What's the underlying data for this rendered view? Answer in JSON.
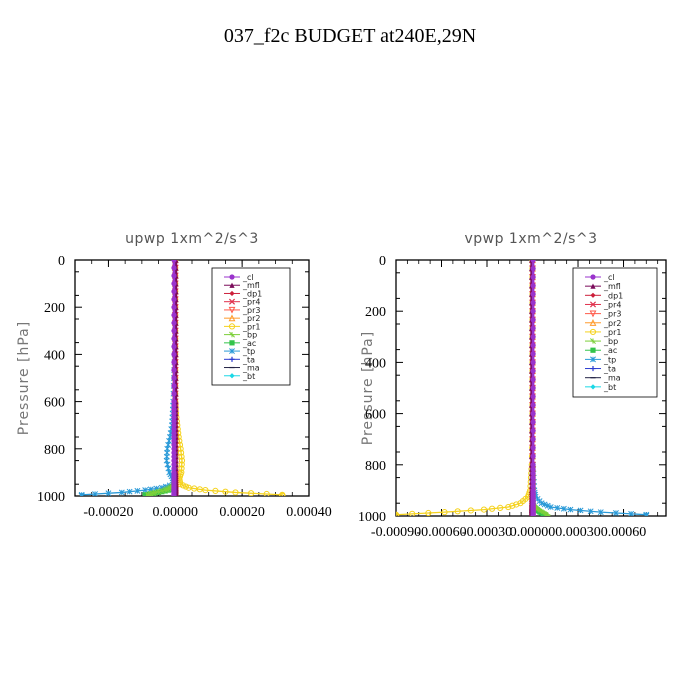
{
  "page": {
    "title": "037_f2c  BUDGET at240E,29N"
  },
  "legend_entries": [
    "_cl",
    "_mfl",
    "_dp1",
    "_pr4",
    "_pr3",
    "_pr2",
    "_pr1",
    "_bp",
    "_ac",
    "_tp",
    "_ta",
    "_ma",
    "_bt"
  ],
  "colors": {
    "_cl": "#9a33cc",
    "_mfl": "#7a0a5a",
    "_dp1": "#cc1f3a",
    "_pr4": "#e0304c",
    "_pr3": "#ff5a4a",
    "_pr2": "#ff9a2a",
    "_pr1": "#f5d21e",
    "_bp": "#7ccf3a",
    "_ac": "#33c44a",
    "_tp": "#2a9ad8",
    "_ta": "#2a3ad0",
    "_ma": "#222244",
    "_bt": "#1ad8e6"
  },
  "chart_data": [
    {
      "type": "line",
      "title": "upwp   1xm^2/s^3",
      "ylabel": "Pressure [hPa]",
      "xlabel": "",
      "xlim": [
        -0.0003,
        0.0004
      ],
      "ylim": [
        1000,
        0
      ],
      "xticks": [
        "-0.00020",
        "0.00000",
        "0.00020",
        "0.00040"
      ],
      "xtick_values": [
        -0.0002,
        0.0,
        0.0002,
        0.0004
      ],
      "yticks": [
        "0",
        "200",
        "400",
        "600",
        "800",
        "1000"
      ],
      "ytick_values": [
        0,
        200,
        400,
        600,
        800,
        1000
      ],
      "grid": false,
      "legend_position": "top-right",
      "pressure": [
        0,
        100,
        200,
        300,
        400,
        500,
        600,
        650,
        700,
        750,
        800,
        850,
        900,
        925,
        950,
        965,
        975,
        985,
        995,
        1000
      ],
      "series": [
        {
          "name": "_cl",
          "values": [
            -4e-06,
            -4e-06,
            -4e-06,
            -4e-06,
            -4e-06,
            -4e-06,
            -4e-06,
            -4e-06,
            -4e-06,
            -4e-06,
            -4e-06,
            -4e-06,
            -4e-06,
            -4e-06,
            -4e-06,
            -4e-06,
            -4e-06,
            -4e-06,
            -4e-06,
            -4e-06
          ]
        },
        {
          "name": "_mfl",
          "values": [
            2e-06,
            2e-06,
            2e-06,
            2e-06,
            2e-06,
            2e-06,
            2e-06,
            2e-06,
            2e-06,
            2e-06,
            2e-06,
            2e-06,
            2e-06,
            2e-06,
            2e-06,
            2e-06,
            2e-06,
            2e-06,
            2e-06,
            2e-06
          ]
        },
        {
          "name": "_dp1",
          "values": [
            0,
            0,
            0,
            0,
            0,
            0,
            0,
            0,
            0,
            0,
            0,
            0,
            0,
            0,
            0,
            0,
            0,
            0,
            0,
            0
          ]
        },
        {
          "name": "_pr4",
          "values": [
            0,
            0,
            0,
            0,
            0,
            0,
            0,
            0,
            0,
            0,
            0,
            0,
            0,
            0,
            0,
            0,
            0,
            0,
            0,
            0
          ]
        },
        {
          "name": "_pr3",
          "values": [
            0,
            0,
            0,
            0,
            0,
            0,
            0,
            0,
            0,
            0,
            0,
            0,
            0,
            0,
            0,
            0,
            0,
            0,
            0,
            0
          ]
        },
        {
          "name": "_pr2",
          "values": [
            0,
            0,
            0,
            0,
            0,
            0,
            0,
            0,
            0,
            0,
            0,
            0,
            0,
            0,
            0,
            0,
            0,
            0,
            0,
            0
          ]
        },
        {
          "name": "_pr1",
          "values": [
            0,
            0,
            0,
            0,
            0,
            0,
            0,
            2e-06,
            6e-06,
            1e-05,
            1.6e-05,
            2e-05,
            1.8e-05,
            1.2e-05,
            1.5e-05,
            4e-05,
            9e-05,
            0.00018,
            0.00032,
            0.00032
          ]
        },
        {
          "name": "_bp",
          "values": [
            0,
            0,
            0,
            0,
            0,
            0,
            0,
            0,
            0,
            0,
            0,
            0,
            0,
            0,
            0,
            -1.5e-05,
            -3e-05,
            -6e-05,
            -8e-05,
            -8e-05
          ]
        },
        {
          "name": "_ac",
          "values": [
            0,
            0,
            0,
            0,
            0,
            0,
            0,
            0,
            0,
            0,
            0,
            0,
            0,
            0,
            0,
            -1e-05,
            -2e-05,
            -5e-05,
            -9e-05,
            -9e-05
          ]
        },
        {
          "name": "_tp",
          "values": [
            0,
            0,
            0,
            0,
            -2e-06,
            -4e-06,
            -6e-06,
            -8e-06,
            -1e-05,
            -1.6e-05,
            -2.4e-05,
            -2.6e-05,
            -1.8e-05,
            -8e-06,
            -5e-06,
            -4e-05,
            -9e-05,
            -0.00016,
            -0.00028,
            -0.00028
          ]
        },
        {
          "name": "_ta",
          "values": [
            0,
            0,
            0,
            0,
            0,
            0,
            0,
            0,
            0,
            0,
            0,
            0,
            0,
            0,
            0,
            0,
            0,
            0,
            0,
            0
          ]
        },
        {
          "name": "_ma",
          "values": [
            0,
            0,
            0,
            0,
            0,
            0,
            0,
            0,
            0,
            0,
            0,
            0,
            0,
            0,
            0,
            0,
            0,
            0,
            0,
            0
          ]
        },
        {
          "name": "_bt",
          "values": [
            0,
            0,
            0,
            0,
            0,
            0,
            0,
            0,
            0,
            0,
            0,
            0,
            0,
            0,
            0,
            0,
            0,
            0,
            0,
            0
          ]
        }
      ]
    },
    {
      "type": "line",
      "title": "vpwp   1xm^2/s^3",
      "ylabel": "Pressure [hPa]",
      "xlabel": "",
      "xlim": [
        -0.0009,
        0.00088
      ],
      "ylim": [
        1000,
        0
      ],
      "xticks": [
        "-0.00090",
        "-0.00060",
        "-0.00030",
        "0.00000",
        "0.00030",
        "0.00060"
      ],
      "xtick_values": [
        -0.0009,
        -0.0006,
        -0.0003,
        0.0,
        0.0003,
        0.0006
      ],
      "yticks": [
        "0",
        "200",
        "400",
        "600",
        "800",
        "1000"
      ],
      "ytick_values": [
        0,
        200,
        400,
        600,
        800,
        1000
      ],
      "grid": false,
      "legend_position": "top-right",
      "pressure": [
        0,
        100,
        200,
        300,
        400,
        500,
        600,
        700,
        800,
        850,
        900,
        925,
        950,
        965,
        975,
        985,
        995,
        1000
      ],
      "series": [
        {
          "name": "_cl",
          "values": [
            4e-06,
            4e-06,
            4e-06,
            4e-06,
            4e-06,
            4e-06,
            4e-06,
            4e-06,
            4e-06,
            4e-06,
            4e-06,
            4e-06,
            4e-06,
            4e-06,
            4e-06,
            4e-06,
            4e-06,
            4e-06
          ]
        },
        {
          "name": "_mfl",
          "values": [
            -6e-06,
            -6e-06,
            -6e-06,
            -6e-06,
            -6e-06,
            -6e-06,
            -6e-06,
            -6e-06,
            -6e-06,
            -6e-06,
            -6e-06,
            -6e-06,
            -6e-06,
            -6e-06,
            -6e-06,
            -6e-06,
            -6e-06,
            -6e-06
          ]
        },
        {
          "name": "_dp1",
          "values": [
            0,
            0,
            0,
            0,
            0,
            0,
            0,
            0,
            0,
            0,
            0,
            0,
            0,
            0,
            0,
            0,
            0,
            0
          ]
        },
        {
          "name": "_pr4",
          "values": [
            0,
            0,
            0,
            0,
            0,
            0,
            0,
            0,
            0,
            0,
            0,
            0,
            0,
            0,
            0,
            0,
            0,
            0
          ]
        },
        {
          "name": "_pr3",
          "values": [
            0,
            0,
            0,
            0,
            0,
            0,
            0,
            0,
            0,
            0,
            0,
            0,
            0,
            0,
            0,
            0,
            0,
            0
          ]
        },
        {
          "name": "_pr2",
          "values": [
            0,
            0,
            0,
            0,
            0,
            0,
            0,
            0,
            0,
            0,
            0,
            0,
            0,
            0,
            0,
            0,
            0,
            0
          ]
        },
        {
          "name": "_pr1",
          "values": [
            0,
            0,
            0,
            0,
            0,
            0,
            0,
            0,
            -5e-06,
            -1e-05,
            -1.5e-05,
            -3e-05,
            -8e-05,
            -0.00016,
            -0.00032,
            -0.00058,
            -0.0009,
            -0.0009
          ]
        },
        {
          "name": "_bp",
          "values": [
            0,
            0,
            0,
            0,
            0,
            0,
            0,
            0,
            0,
            0,
            0,
            0,
            0,
            2e-05,
            4e-05,
            7e-05,
            0.0001,
            0.0001
          ]
        },
        {
          "name": "_ac",
          "values": [
            0,
            0,
            0,
            0,
            0,
            0,
            0,
            0,
            0,
            0,
            0,
            0,
            0,
            1e-05,
            3e-05,
            5e-05,
            8e-05,
            8e-05
          ]
        },
        {
          "name": "_tp",
          "values": [
            0,
            0,
            0,
            0,
            0,
            0,
            0,
            0,
            4e-06,
            8e-06,
            1.2e-05,
            2e-05,
            6e-05,
            0.00012,
            0.00025,
            0.00045,
            0.00075,
            0.00075
          ]
        },
        {
          "name": "_ta",
          "values": [
            0,
            0,
            0,
            0,
            0,
            0,
            0,
            0,
            0,
            0,
            0,
            0,
            0,
            0,
            0,
            0,
            0,
            0
          ]
        },
        {
          "name": "_ma",
          "values": [
            0,
            0,
            0,
            0,
            0,
            0,
            0,
            0,
            0,
            0,
            0,
            0,
            0,
            0,
            0,
            0,
            0,
            0
          ]
        },
        {
          "name": "_bt",
          "values": [
            0,
            0,
            0,
            0,
            0,
            0,
            0,
            0,
            0,
            0,
            0,
            0,
            0,
            0,
            0,
            0,
            0,
            0
          ]
        }
      ]
    }
  ]
}
